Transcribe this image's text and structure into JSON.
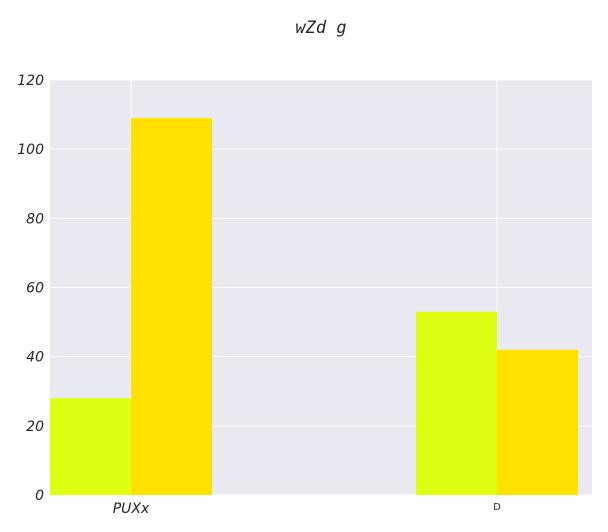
{
  "chart_data": {
    "type": "bar",
    "title": "wZd g",
    "xlabel": "",
    "ylabel": "",
    "categories": [
      "PUXx",
      "D"
    ],
    "series": [
      {
        "values": [
          28,
          53
        ],
        "color": "#dfff12"
      },
      {
        "values": [
          109,
          42
        ],
        "color": "#ffe100"
      }
    ],
    "ylim": [
      0,
      120
    ],
    "yticks": [
      0,
      20,
      40,
      60,
      80,
      100,
      120
    ],
    "grid": true,
    "background": "#e9e9f2",
    "grid_color": "#ffffff"
  }
}
